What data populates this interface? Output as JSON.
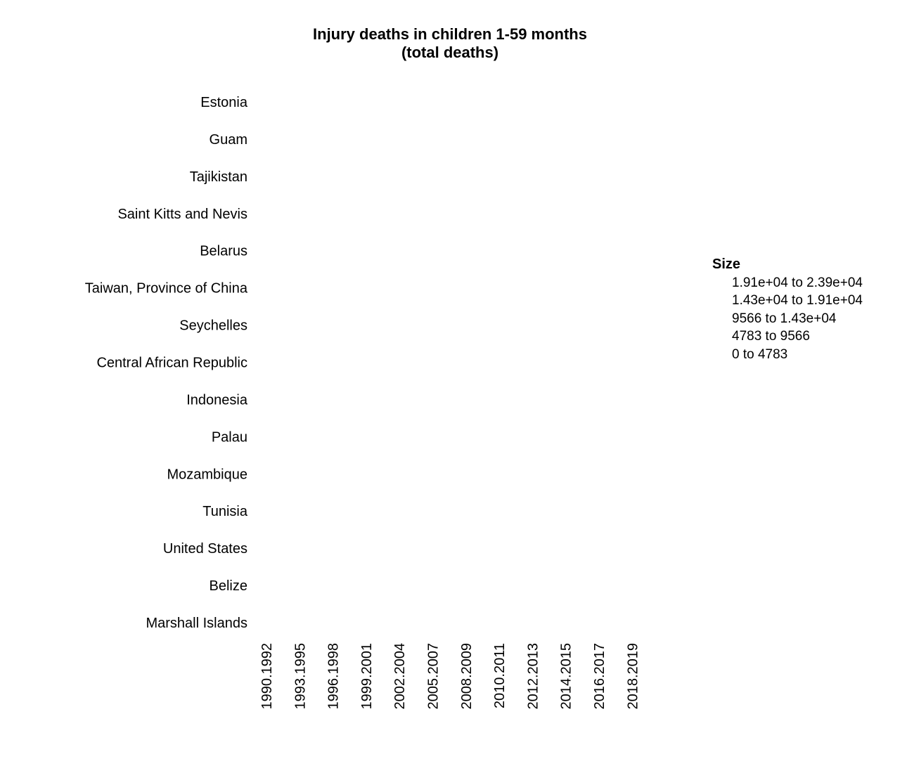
{
  "chart_data": {
    "type": "scatter",
    "title": "Injury deaths in children 1-59 months",
    "subtitle": "(total deaths)",
    "xlabel": "",
    "ylabel": "",
    "x_categories": [
      "1990.1992",
      "1993.1995",
      "1996.1998",
      "1999.2001",
      "2002.2004",
      "2005.2007",
      "2008.2009",
      "2010.2011",
      "2012.2013",
      "2014.2015",
      "2016.2017",
      "2018.2019"
    ],
    "y_categories": [
      "Estonia",
      "Guam",
      "Tajikistan",
      "Saint Kitts and Nevis",
      "Belarus",
      "Taiwan, Province of China",
      "Seychelles",
      "Central African Republic",
      "Indonesia",
      "Palau",
      "Mozambique",
      "Tunisia",
      "United States",
      "Belize",
      "Marshall Islands"
    ],
    "points": [],
    "grid": false,
    "legend": {
      "title": "Size",
      "placement": "right",
      "items": [
        "1.91e+04 to 2.39e+04",
        "1.43e+04 to 1.91e+04",
        "9566 to 1.43e+04",
        "4783 to 9566",
        "0 to 4783"
      ]
    }
  }
}
